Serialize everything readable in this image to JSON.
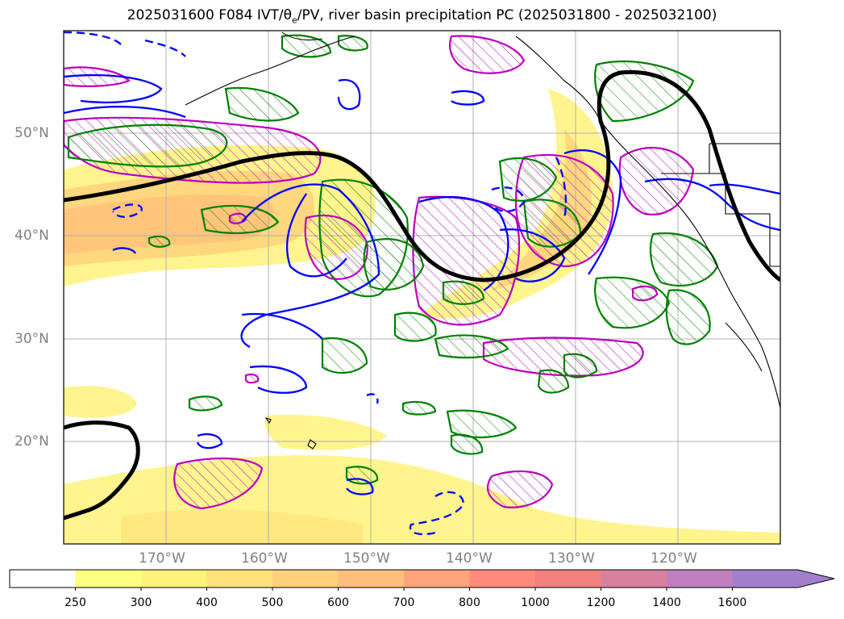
{
  "title": {
    "prefix": "2025031600 F084 IVT/",
    "theta": "θ",
    "theta_sub": "e",
    "suffix": "/PV, river basin precipitation PC (2025031800 - 2025032100)"
  },
  "map": {
    "region": "North Pacific",
    "projection": "PlateCarree",
    "lon_range": [
      -180,
      -110
    ],
    "lat_range": [
      10,
      60
    ],
    "lat_ticks": [
      {
        "value": 50,
        "label": "50°N"
      },
      {
        "value": 40,
        "label": "40°N"
      },
      {
        "value": 30,
        "label": "30°N"
      },
      {
        "value": 20,
        "label": "20°N"
      }
    ],
    "lon_ticks": [
      {
        "value": -170,
        "label": "170°W"
      },
      {
        "value": -160,
        "label": "160°W"
      },
      {
        "value": -150,
        "label": "150°W"
      },
      {
        "value": -140,
        "label": "140°W"
      },
      {
        "value": -130,
        "label": "130°W"
      },
      {
        "value": -120,
        "label": "120°W"
      }
    ],
    "gridlines": true,
    "layers": [
      {
        "name": "IVT",
        "type": "filled-contour",
        "color": "#ffe066"
      },
      {
        "name": "theta_e",
        "type": "contour",
        "color": "#0000ff"
      },
      {
        "name": "PV",
        "type": "contour",
        "color": "#000000"
      },
      {
        "name": "precip-PC",
        "type": "hatched-contour",
        "color": "#bb00bb"
      },
      {
        "name": "precip-PC-2",
        "type": "hatched-contour",
        "color": "#008000"
      }
    ]
  },
  "colorbar": {
    "extend": "max",
    "levels": [
      {
        "label": "250",
        "color": "#ffff80"
      },
      {
        "label": "300",
        "color": "#fff27a"
      },
      {
        "label": "400",
        "color": "#ffe27a"
      },
      {
        "label": "500",
        "color": "#ffd07a"
      },
      {
        "label": "600",
        "color": "#ffbe7a"
      },
      {
        "label": "700",
        "color": "#ffa47a"
      },
      {
        "label": "800",
        "color": "#ff8a7a"
      },
      {
        "label": "1000",
        "color": "#f2807f"
      },
      {
        "label": "1200",
        "color": "#d880a0"
      },
      {
        "label": "1400",
        "color": "#c080c0"
      },
      {
        "label": "1600",
        "color": "#a080cc"
      }
    ],
    "under_color": "#ffffff"
  }
}
